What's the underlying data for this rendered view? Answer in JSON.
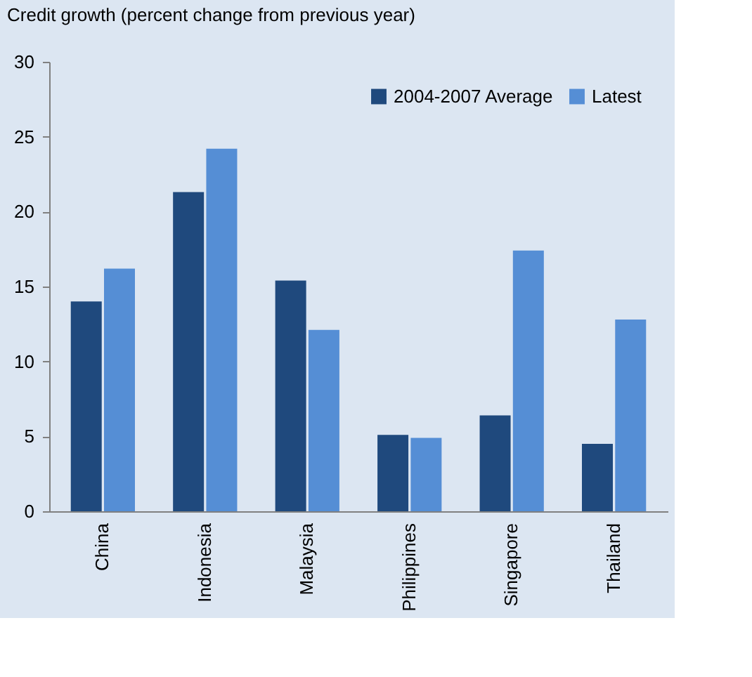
{
  "chart_data": {
    "type": "bar",
    "title": "Credit growth (percent change from previous year)",
    "categories": [
      "China",
      "Indonesia",
      "Malaysia",
      "Philippines",
      "Singapore",
      "Thailand"
    ],
    "series": [
      {
        "name": "2004-2007 Average",
        "color": "#1f497d",
        "values": [
          14.0,
          21.3,
          15.4,
          5.1,
          6.4,
          4.5
        ]
      },
      {
        "name": "Latest",
        "color": "#558ed5",
        "values": [
          16.2,
          24.2,
          12.1,
          4.9,
          17.4,
          12.8
        ]
      }
    ],
    "ylim": [
      0,
      30
    ],
    "yticks": [
      0,
      5,
      10,
      15,
      20,
      25,
      30
    ],
    "grid": false,
    "legend": "top right"
  }
}
